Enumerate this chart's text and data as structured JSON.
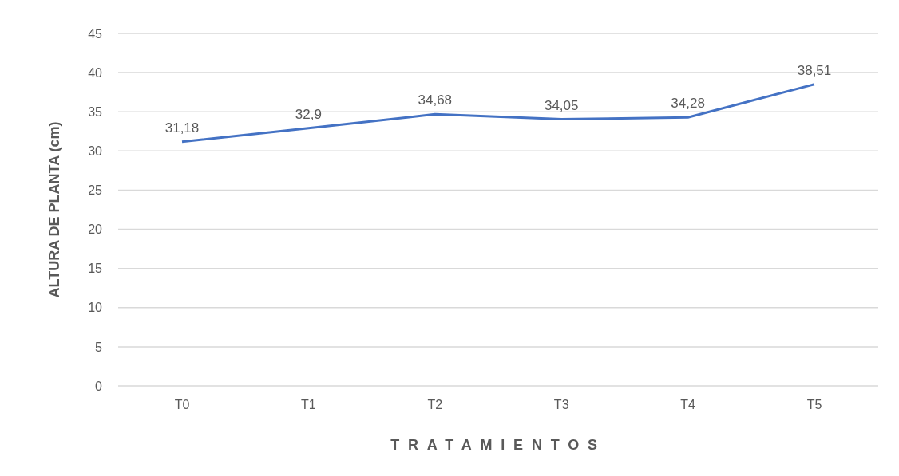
{
  "chart_data": {
    "type": "line",
    "xlabel": "TRATAMIENTOS",
    "ylabel": "ALTURA DE PLANTA (cm)",
    "categories": [
      "T0",
      "T1",
      "T2",
      "T3",
      "T4",
      "T5"
    ],
    "series": [
      {
        "color": "#4472c4",
        "values": [
          31.18,
          32.9,
          34.68,
          34.05,
          34.28,
          38.51
        ],
        "value_labels": [
          "31,18",
          "32,9",
          "34,68",
          "34,05",
          "34,28",
          "38,51"
        ]
      }
    ],
    "ylim": [
      0,
      45
    ],
    "yticks": [
      0,
      5,
      10,
      15,
      20,
      25,
      30,
      35,
      40,
      45
    ],
    "grid": "y",
    "legend": false,
    "marker": "none",
    "line_style": "solid"
  }
}
